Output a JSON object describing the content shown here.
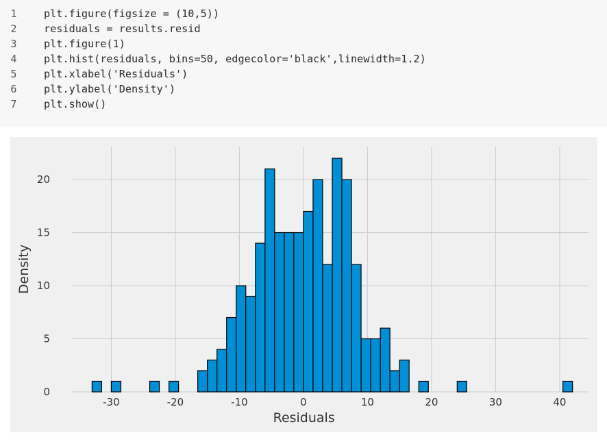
{
  "code": {
    "lines": [
      {
        "no": "1",
        "text": "plt.figure(figsize = (10,5))"
      },
      {
        "no": "2",
        "text": "residuals = results.resid"
      },
      {
        "no": "3",
        "text": "plt.figure(1)"
      },
      {
        "no": "4",
        "text": "plt.hist(residuals, bins=50, edgecolor='black',linewidth=1.2)"
      },
      {
        "no": "5",
        "text": "plt.xlabel('Residuals')"
      },
      {
        "no": "6",
        "text": "plt.ylabel('Density')"
      },
      {
        "no": "7",
        "text": "plt.show()"
      }
    ]
  },
  "chart_data": {
    "type": "bar",
    "title": "",
    "xlabel": "Residuals",
    "ylabel": "Density",
    "xlim": [
      -35.5,
      44.5
    ],
    "ylim": [
      0,
      23.1
    ],
    "xticks": [
      -30,
      -20,
      -10,
      0,
      10,
      20,
      30,
      40
    ],
    "yticks": [
      0,
      5,
      10,
      15,
      20
    ],
    "grid": true,
    "bar_color": "#008fd5",
    "edge_color": "#000000",
    "bin_width": 1.5,
    "bins": [
      {
        "x0": -33.0,
        "count": 1
      },
      {
        "x0": -30.0,
        "count": 1
      },
      {
        "x0": -24.0,
        "count": 1
      },
      {
        "x0": -21.0,
        "count": 1
      },
      {
        "x0": -16.5,
        "count": 2
      },
      {
        "x0": -15.0,
        "count": 3
      },
      {
        "x0": -13.5,
        "count": 4
      },
      {
        "x0": -12.0,
        "count": 7
      },
      {
        "x0": -10.5,
        "count": 10
      },
      {
        "x0": -9.0,
        "count": 9
      },
      {
        "x0": -7.5,
        "count": 14
      },
      {
        "x0": -6.0,
        "count": 21
      },
      {
        "x0": -4.5,
        "count": 15
      },
      {
        "x0": -3.0,
        "count": 15
      },
      {
        "x0": -1.5,
        "count": 15
      },
      {
        "x0": 0.0,
        "count": 17
      },
      {
        "x0": 1.5,
        "count": 20
      },
      {
        "x0": 3.0,
        "count": 12
      },
      {
        "x0": 4.5,
        "count": 22
      },
      {
        "x0": 6.0,
        "count": 20
      },
      {
        "x0": 7.5,
        "count": 12
      },
      {
        "x0": 9.0,
        "count": 5
      },
      {
        "x0": 10.5,
        "count": 5
      },
      {
        "x0": 12.0,
        "count": 6
      },
      {
        "x0": 13.5,
        "count": 2
      },
      {
        "x0": 15.0,
        "count": 3
      },
      {
        "x0": 18.0,
        "count": 1
      },
      {
        "x0": 24.0,
        "count": 1
      },
      {
        "x0": 40.5,
        "count": 1
      }
    ]
  }
}
